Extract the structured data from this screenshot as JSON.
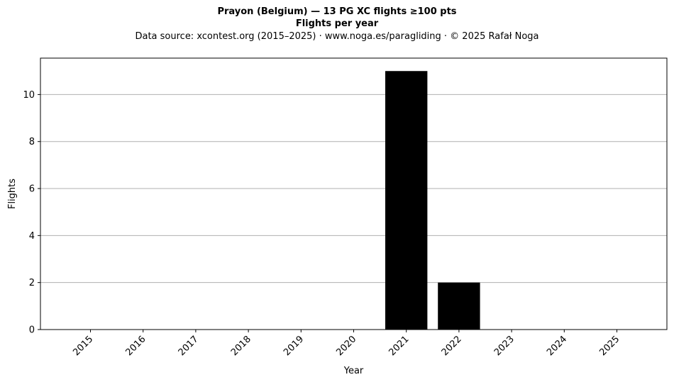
{
  "chart_data": {
    "type": "bar",
    "title": "Prayon (Belgium)  —  13 PG XC flights ≥100 pts",
    "subtitle": "Flights per year",
    "source": "Data source: xcontest.org (2015–2025)  ·  www.noga.es/paragliding  ·  © 2025 Rafał Noga",
    "xlabel": "Year",
    "ylabel": "Flights",
    "categories": [
      "2015",
      "2016",
      "2017",
      "2018",
      "2019",
      "2020",
      "2021",
      "2022",
      "2023",
      "2024",
      "2025"
    ],
    "values": [
      0,
      0,
      0,
      0,
      0,
      0,
      11,
      2,
      0,
      0,
      0
    ],
    "ylim": [
      0,
      11.55
    ],
    "yticks": [
      0,
      2,
      4,
      6,
      8,
      10
    ],
    "grid": "horizontal",
    "bar_color": "#000000",
    "grid_color": "#b0b0b0"
  }
}
